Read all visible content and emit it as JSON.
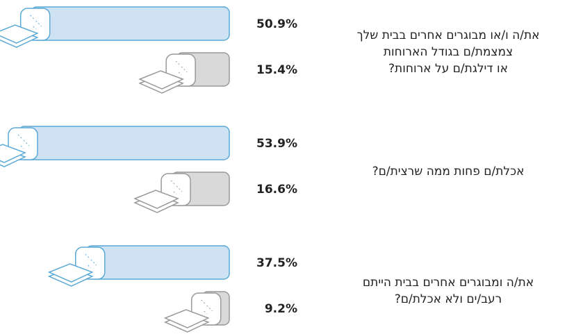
{
  "chart_data": {
    "type": "bar",
    "categories": [
      "את/ה ו/או מבוגרים אחרים בבית שלך\nצמצמת/ם בגודל הארוחות\nאו דילגת/ם על ארוחות?",
      "אכלת/ם פחות ממה שרצית/ם?",
      "את/ה ומבוגרים אחרים בבית הייתם\nרעב/ים ולא אכלת/ם?"
    ],
    "series": [
      {
        "color": "#cfe2f3",
        "values": [
          50.9,
          53.9,
          37.5
        ],
        "value_labels": [
          "50.9%",
          "53.9%",
          "37.5%"
        ]
      },
      {
        "color": "#d9d9d9",
        "values": [
          15.4,
          16.6,
          9.2
        ],
        "value_labels": [
          "15.4%",
          "16.6%",
          "9.2%"
        ]
      }
    ]
  }
}
